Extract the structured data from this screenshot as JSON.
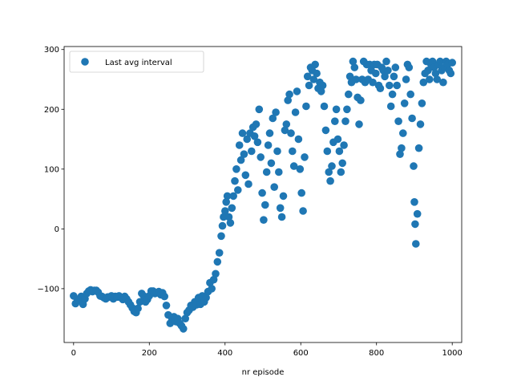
{
  "chart_data": {
    "type": "scatter",
    "title": "",
    "xlabel": "nr episode",
    "ylabel": "",
    "xlim": [
      -25,
      1025
    ],
    "ylim": [
      -190,
      305
    ],
    "xticks": [
      0,
      200,
      400,
      600,
      800,
      1000
    ],
    "yticks": [
      -100,
      0,
      100,
      200,
      300
    ],
    "grid": false,
    "legend_position": "upper-left",
    "marker_color": "#1f77b4",
    "series": [
      {
        "name": "Last avg interval",
        "points": [
          [
            0,
            -112
          ],
          [
            5,
            -125
          ],
          [
            10,
            -118
          ],
          [
            15,
            -120
          ],
          [
            20,
            -113
          ],
          [
            25,
            -126
          ],
          [
            30,
            -117
          ],
          [
            35,
            -108
          ],
          [
            40,
            -104
          ],
          [
            45,
            -102
          ],
          [
            50,
            -105
          ],
          [
            55,
            -103
          ],
          [
            60,
            -103
          ],
          [
            65,
            -106
          ],
          [
            70,
            -112
          ],
          [
            75,
            -113
          ],
          [
            80,
            -115
          ],
          [
            85,
            -117
          ],
          [
            90,
            -114
          ],
          [
            95,
            -114
          ],
          [
            100,
            -112
          ],
          [
            105,
            -117
          ],
          [
            110,
            -113
          ],
          [
            115,
            -114
          ],
          [
            120,
            -112
          ],
          [
            125,
            -115
          ],
          [
            130,
            -118
          ],
          [
            135,
            -113
          ],
          [
            140,
            -117
          ],
          [
            145,
            -122
          ],
          [
            150,
            -127
          ],
          [
            155,
            -132
          ],
          [
            160,
            -138
          ],
          [
            165,
            -140
          ],
          [
            170,
            -133
          ],
          [
            175,
            -122
          ],
          [
            180,
            -108
          ],
          [
            185,
            -112
          ],
          [
            190,
            -122
          ],
          [
            195,
            -118
          ],
          [
            200,
            -112
          ],
          [
            205,
            -104
          ],
          [
            210,
            -104
          ],
          [
            215,
            -108
          ],
          [
            220,
            -107
          ],
          [
            225,
            -105
          ],
          [
            230,
            -110
          ],
          [
            235,
            -107
          ],
          [
            240,
            -113
          ],
          [
            245,
            -128
          ],
          [
            250,
            -144
          ],
          [
            255,
            -158
          ],
          [
            260,
            -150
          ],
          [
            265,
            -147
          ],
          [
            270,
            -155
          ],
          [
            275,
            -150
          ],
          [
            280,
            -158
          ],
          [
            285,
            -162
          ],
          [
            290,
            -167
          ],
          [
            295,
            -150
          ],
          [
            300,
            -140
          ],
          [
            305,
            -136
          ],
          [
            310,
            -128
          ],
          [
            315,
            -131
          ],
          [
            320,
            -122
          ],
          [
            325,
            -127
          ],
          [
            330,
            -115
          ],
          [
            335,
            -126
          ],
          [
            340,
            -112
          ],
          [
            345,
            -122
          ],
          [
            350,
            -115
          ],
          [
            355,
            -105
          ],
          [
            360,
            -90
          ],
          [
            365,
            -100
          ],
          [
            370,
            -85
          ],
          [
            375,
            -75
          ],
          [
            380,
            -55
          ],
          [
            385,
            -40
          ],
          [
            390,
            -12
          ],
          [
            393,
            5
          ],
          [
            396,
            20
          ],
          [
            400,
            30
          ],
          [
            403,
            45
          ],
          [
            406,
            55
          ],
          [
            410,
            20
          ],
          [
            414,
            10
          ],
          [
            418,
            35
          ],
          [
            422,
            55
          ],
          [
            426,
            80
          ],
          [
            430,
            100
          ],
          [
            434,
            65
          ],
          [
            438,
            140
          ],
          [
            442,
            115
          ],
          [
            446,
            160
          ],
          [
            450,
            125
          ],
          [
            454,
            90
          ],
          [
            458,
            150
          ],
          [
            462,
            75
          ],
          [
            466,
            160
          ],
          [
            470,
            130
          ],
          [
            474,
            170
          ],
          [
            478,
            155
          ],
          [
            482,
            175
          ],
          [
            486,
            145
          ],
          [
            490,
            200
          ],
          [
            494,
            120
          ],
          [
            498,
            60
          ],
          [
            502,
            15
          ],
          [
            506,
            40
          ],
          [
            510,
            95
          ],
          [
            514,
            140
          ],
          [
            518,
            160
          ],
          [
            522,
            110
          ],
          [
            526,
            185
          ],
          [
            530,
            70
          ],
          [
            534,
            195
          ],
          [
            538,
            130
          ],
          [
            542,
            95
          ],
          [
            546,
            35
          ],
          [
            550,
            20
          ],
          [
            554,
            55
          ],
          [
            558,
            165
          ],
          [
            562,
            175
          ],
          [
            566,
            215
          ],
          [
            570,
            225
          ],
          [
            574,
            160
          ],
          [
            578,
            130
          ],
          [
            582,
            105
          ],
          [
            586,
            195
          ],
          [
            590,
            230
          ],
          [
            594,
            150
          ],
          [
            598,
            100
          ],
          [
            602,
            60
          ],
          [
            606,
            30
          ],
          [
            610,
            120
          ],
          [
            614,
            205
          ],
          [
            618,
            255
          ],
          [
            622,
            240
          ],
          [
            626,
            270
          ],
          [
            630,
            265
          ],
          [
            634,
            250
          ],
          [
            638,
            275
          ],
          [
            642,
            260
          ],
          [
            646,
            235
          ],
          [
            650,
            245
          ],
          [
            654,
            230
          ],
          [
            658,
            240
          ],
          [
            662,
            205
          ],
          [
            666,
            165
          ],
          [
            670,
            130
          ],
          [
            674,
            95
          ],
          [
            678,
            80
          ],
          [
            682,
            105
          ],
          [
            686,
            145
          ],
          [
            690,
            180
          ],
          [
            694,
            200
          ],
          [
            698,
            150
          ],
          [
            702,
            130
          ],
          [
            706,
            95
          ],
          [
            710,
            110
          ],
          [
            714,
            140
          ],
          [
            718,
            180
          ],
          [
            722,
            200
          ],
          [
            726,
            225
          ],
          [
            730,
            255
          ],
          [
            734,
            245
          ],
          [
            738,
            280
          ],
          [
            742,
            270
          ],
          [
            746,
            250
          ],
          [
            750,
            220
          ],
          [
            754,
            175
          ],
          [
            758,
            215
          ],
          [
            762,
            250
          ],
          [
            766,
            280
          ],
          [
            770,
            245
          ],
          [
            774,
            275
          ],
          [
            778,
            250
          ],
          [
            782,
            275
          ],
          [
            786,
            265
          ],
          [
            790,
            245
          ],
          [
            794,
            275
          ],
          [
            798,
            260
          ],
          [
            802,
            275
          ],
          [
            806,
            240
          ],
          [
            810,
            235
          ],
          [
            814,
            270
          ],
          [
            818,
            265
          ],
          [
            822,
            255
          ],
          [
            826,
            280
          ],
          [
            830,
            265
          ],
          [
            834,
            240
          ],
          [
            838,
            205
          ],
          [
            842,
            225
          ],
          [
            846,
            255
          ],
          [
            850,
            270
          ],
          [
            854,
            240
          ],
          [
            858,
            180
          ],
          [
            862,
            125
          ],
          [
            866,
            135
          ],
          [
            870,
            160
          ],
          [
            874,
            210
          ],
          [
            878,
            250
          ],
          [
            882,
            275
          ],
          [
            886,
            270
          ],
          [
            890,
            225
          ],
          [
            894,
            185
          ],
          [
            898,
            105
          ],
          [
            900,
            45
          ],
          [
            902,
            8
          ],
          [
            904,
            -25
          ],
          [
            908,
            25
          ],
          [
            912,
            135
          ],
          [
            916,
            175
          ],
          [
            920,
            210
          ],
          [
            924,
            245
          ],
          [
            928,
            260
          ],
          [
            932,
            280
          ],
          [
            936,
            265
          ],
          [
            940,
            250
          ],
          [
            944,
            275
          ],
          [
            948,
            280
          ],
          [
            952,
            270
          ],
          [
            956,
            260
          ],
          [
            960,
            250
          ],
          [
            964,
            275
          ],
          [
            968,
            280
          ],
          [
            972,
            265
          ],
          [
            976,
            245
          ],
          [
            980,
            270
          ],
          [
            984,
            280
          ],
          [
            988,
            275
          ],
          [
            992,
            265
          ],
          [
            996,
            260
          ],
          [
            1000,
            278
          ]
        ]
      }
    ]
  }
}
